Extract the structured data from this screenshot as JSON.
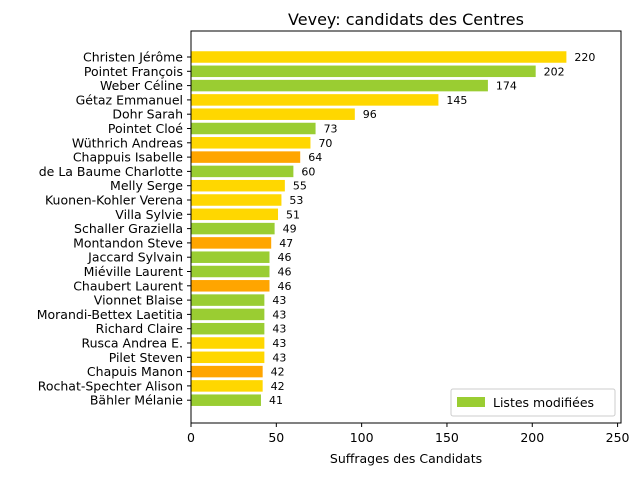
{
  "chart_data": {
    "type": "bar",
    "orientation": "horizontal",
    "title": "Vevey: candidats des Centres",
    "xlabel": "Suffrages des Candidats",
    "ylabel": "",
    "xlim": [
      0,
      252
    ],
    "xticks": [
      0,
      50,
      100,
      150,
      200,
      250
    ],
    "grid": false,
    "legend": {
      "entries": [
        {
          "label": "Listes modifiées",
          "color": "#9acd32"
        }
      ],
      "placement": "lower-right"
    },
    "categories": [
      "Christen Jérôme",
      "Pointet François",
      "Weber Céline",
      "Gétaz Emmanuel",
      "Dohr Sarah",
      "Pointet Cloé",
      "Wüthrich Andreas",
      "Chappuis Isabelle",
      "de La Baume Charlotte",
      "Melly Serge",
      "Kuonen-Kohler Verena",
      "Villa Sylvie",
      "Schaller Graziella",
      "Montandon Steve",
      "Jaccard Sylvain",
      "Miéville Laurent",
      "Chaubert Laurent",
      "Vionnet Blaise",
      "Morandi-Bettex Laetitia",
      "Richard Claire",
      "Rusca Andrea E.",
      "Pilet Steven",
      "Chapuis Manon",
      "Rochat-Spechter Alison",
      "Bähler Mélanie"
    ],
    "values": [
      220,
      202,
      174,
      145,
      96,
      73,
      70,
      64,
      60,
      55,
      53,
      51,
      49,
      47,
      46,
      46,
      46,
      43,
      43,
      43,
      43,
      43,
      42,
      42,
      41
    ],
    "colors": [
      "#ffd700",
      "#9acd32",
      "#9acd32",
      "#ffd700",
      "#ffd700",
      "#9acd32",
      "#ffd700",
      "#ffa500",
      "#9acd32",
      "#ffd700",
      "#ffd700",
      "#ffd700",
      "#9acd32",
      "#ffa500",
      "#9acd32",
      "#9acd32",
      "#ffa500",
      "#9acd32",
      "#9acd32",
      "#9acd32",
      "#ffd700",
      "#ffd700",
      "#ffa500",
      "#ffd700",
      "#9acd32"
    ]
  }
}
